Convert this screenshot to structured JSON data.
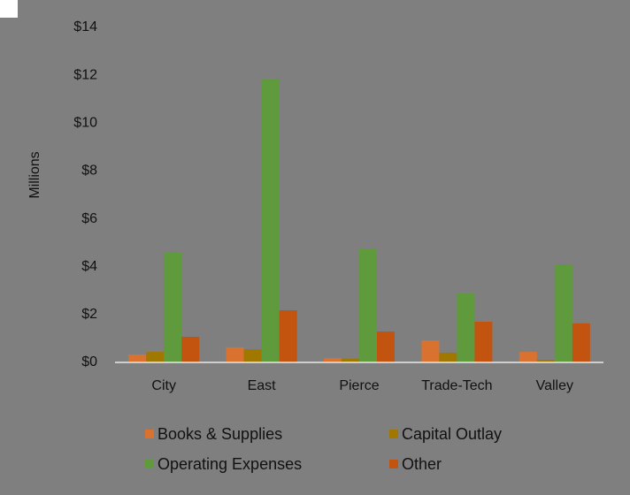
{
  "chart_data": {
    "type": "bar",
    "y_label": "Millions",
    "categories": [
      "City",
      "East",
      "Pierce",
      "Trade-Tech",
      "Valley"
    ],
    "series": [
      {
        "name": "Books & Supplies",
        "color": "#d9722f",
        "values": [
          0.33,
          0.63,
          0.18,
          0.92,
          0.44
        ]
      },
      {
        "name": "Capital Outlay",
        "color": "#a07800",
        "values": [
          0.44,
          0.55,
          0.15,
          0.41,
          0.11
        ]
      },
      {
        "name": "Operating Expenses",
        "color": "#5f9a3c",
        "values": [
          4.58,
          11.82,
          4.73,
          2.88,
          4.1
        ]
      },
      {
        "name": "Other",
        "color": "#c2540f",
        "values": [
          1.07,
          2.18,
          1.29,
          1.7,
          1.63
        ]
      }
    ],
    "ylim": [
      0,
      14
    ],
    "yticks": [
      {
        "value": 0,
        "label": "$0"
      },
      {
        "value": 2,
        "label": "$2"
      },
      {
        "value": 4,
        "label": "$4"
      },
      {
        "value": 6,
        "label": "$6"
      },
      {
        "value": 8,
        "label": "$8"
      },
      {
        "value": 10,
        "label": "$10"
      },
      {
        "value": 12,
        "label": "$12"
      },
      {
        "value": 14,
        "label": "$14"
      }
    ],
    "grid": false,
    "legend": "bottom"
  }
}
